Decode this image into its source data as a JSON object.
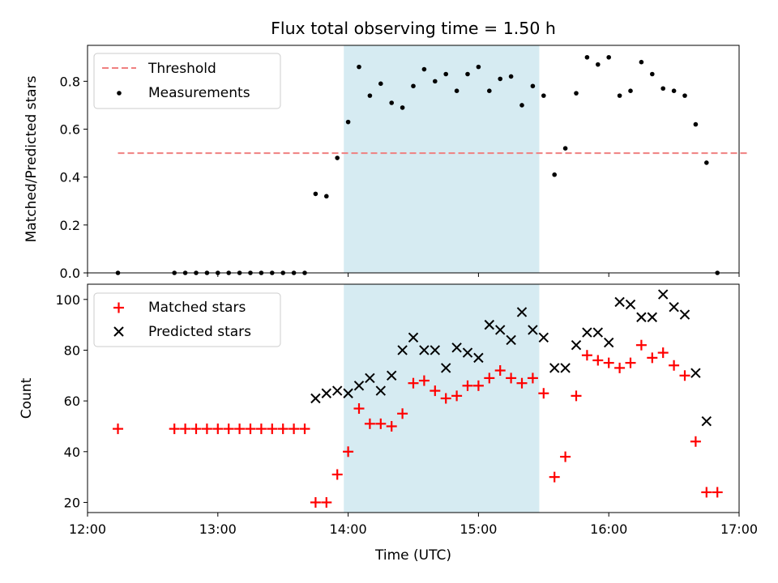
{
  "title": "Flux total observing time = 1.50 h",
  "colors": {
    "threshold": "#f08080",
    "measurements": "#000000",
    "matched": "#ff0000",
    "predicted": "#000000",
    "shade": "#add8e6"
  },
  "chart_data": [
    {
      "type": "scatter",
      "ylabel": "Matched/Predicted stars",
      "ylim": [
        0,
        0.95
      ],
      "yticks": [
        0.0,
        0.2,
        0.4,
        0.6,
        0.8
      ],
      "ytick_labels": [
        "0.0",
        "0.2",
        "0.4",
        "0.6",
        "0.8"
      ],
      "shaded_span": [
        "13:58",
        "15:28"
      ],
      "legend": {
        "position": "top-left",
        "entries": [
          "Threshold",
          "Measurements"
        ]
      },
      "threshold": {
        "name": "Threshold",
        "value": 0.5,
        "x_range": [
          "12:14",
          "17:04"
        ],
        "style": "dashed"
      },
      "series": [
        {
          "name": "Measurements",
          "x": [
            "12:14",
            "12:40",
            "12:45",
            "12:50",
            "12:55",
            "13:00",
            "13:05",
            "13:10",
            "13:15",
            "13:20",
            "13:25",
            "13:30",
            "13:35",
            "13:40",
            "13:45",
            "13:50",
            "13:55",
            "14:00",
            "14:05",
            "14:10",
            "14:15",
            "14:20",
            "14:25",
            "14:30",
            "14:35",
            "14:40",
            "14:45",
            "14:50",
            "14:55",
            "15:00",
            "15:05",
            "15:10",
            "15:15",
            "15:20",
            "15:25",
            "15:30",
            "15:35",
            "15:40",
            "15:45",
            "15:50",
            "15:55",
            "16:00",
            "16:05",
            "16:10",
            "16:15",
            "16:20",
            "16:25",
            "16:30",
            "16:35",
            "16:40",
            "16:45",
            "16:50"
          ],
          "y": [
            0.0,
            0.0,
            0.0,
            0.0,
            0.0,
            0.0,
            0.0,
            0.0,
            0.0,
            0.0,
            0.0,
            0.0,
            0.0,
            0.0,
            0.33,
            0.32,
            0.48,
            0.63,
            0.86,
            0.74,
            0.79,
            0.71,
            0.69,
            0.78,
            0.85,
            0.8,
            0.83,
            0.76,
            0.83,
            0.86,
            0.76,
            0.81,
            0.82,
            0.7,
            0.78,
            0.74,
            0.41,
            0.52,
            0.75,
            0.9,
            0.87,
            0.9,
            0.74,
            0.76,
            0.88,
            0.83,
            0.77,
            0.76,
            0.74,
            0.62,
            0.46,
            0.0
          ]
        }
      ]
    },
    {
      "type": "scatter",
      "xlabel": "Time (UTC)",
      "ylabel": "Count",
      "ylim": [
        16,
        106
      ],
      "yticks": [
        20,
        40,
        60,
        80,
        100
      ],
      "ytick_labels": [
        "20",
        "40",
        "60",
        "80",
        "100"
      ],
      "xlim": [
        "12:00",
        "17:00"
      ],
      "xtick_labels": [
        "12:00",
        "13:00",
        "14:00",
        "15:00",
        "16:00",
        "17:00"
      ],
      "shaded_span": [
        "13:58",
        "15:28"
      ],
      "legend": {
        "position": "top-left",
        "entries": [
          "Matched stars",
          "Predicted stars"
        ]
      },
      "series": [
        {
          "name": "Matched stars",
          "marker": "+",
          "x": [
            "12:14",
            "12:40",
            "12:45",
            "12:50",
            "12:55",
            "13:00",
            "13:05",
            "13:10",
            "13:15",
            "13:20",
            "13:25",
            "13:30",
            "13:35",
            "13:40",
            "13:45",
            "13:50",
            "13:55",
            "14:00",
            "14:05",
            "14:10",
            "14:15",
            "14:20",
            "14:25",
            "14:30",
            "14:35",
            "14:40",
            "14:45",
            "14:50",
            "14:55",
            "15:00",
            "15:05",
            "15:10",
            "15:15",
            "15:20",
            "15:25",
            "15:30",
            "15:35",
            "15:40",
            "15:45",
            "15:50",
            "15:55",
            "16:00",
            "16:05",
            "16:10",
            "16:15",
            "16:20",
            "16:25",
            "16:30",
            "16:35",
            "16:40",
            "16:45",
            "16:50"
          ],
          "y": [
            49,
            49,
            49,
            49,
            49,
            49,
            49,
            49,
            49,
            49,
            49,
            49,
            49,
            49,
            20,
            20,
            31,
            40,
            57,
            51,
            51,
            50,
            55,
            67,
            68,
            64,
            61,
            62,
            66,
            66,
            69,
            72,
            69,
            67,
            69,
            63,
            30,
            38,
            62,
            78,
            76,
            75,
            73,
            75,
            82,
            77,
            79,
            74,
            70,
            44,
            24,
            24
          ]
        },
        {
          "name": "Predicted stars",
          "marker": "x",
          "x": [
            "13:45",
            "13:50",
            "13:55",
            "14:00",
            "14:05",
            "14:10",
            "14:15",
            "14:20",
            "14:25",
            "14:30",
            "14:35",
            "14:40",
            "14:45",
            "14:50",
            "14:55",
            "15:00",
            "15:05",
            "15:10",
            "15:15",
            "15:20",
            "15:25",
            "15:30",
            "15:35",
            "15:40",
            "15:45",
            "15:50",
            "15:55",
            "16:00",
            "16:05",
            "16:10",
            "16:15",
            "16:20",
            "16:25",
            "16:30",
            "16:35",
            "16:40",
            "16:45"
          ],
          "y": [
            61,
            63,
            64,
            63,
            66,
            69,
            64,
            70,
            80,
            85,
            80,
            80,
            73,
            81,
            79,
            77,
            90,
            88,
            84,
            95,
            88,
            85,
            73,
            73,
            82,
            87,
            87,
            83,
            99,
            98,
            93,
            93,
            102,
            97,
            94,
            71,
            52
          ]
        }
      ]
    }
  ]
}
